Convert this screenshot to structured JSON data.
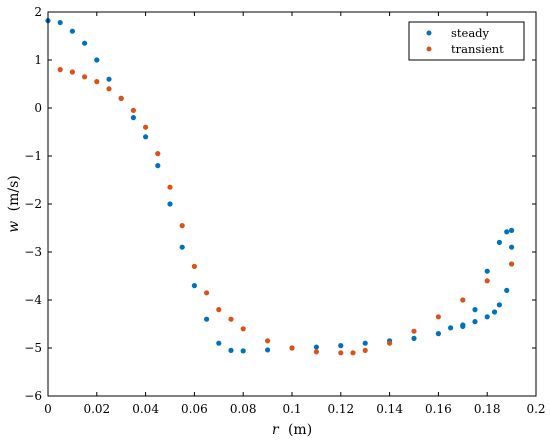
{
  "chart_data": {
    "type": "scatter",
    "title": "",
    "xlabel": "r (m)",
    "xlabel_var": "r",
    "xlabel_unit": "(m)",
    "ylabel": "w (m/s)",
    "ylabel_var": "w",
    "ylabel_unit": "(m/s)",
    "xlim": [
      0,
      0.2
    ],
    "ylim": [
      -6,
      2
    ],
    "xticks": [
      0,
      0.02,
      0.04,
      0.06,
      0.08,
      0.1,
      0.12,
      0.14,
      0.16,
      0.18,
      0.2
    ],
    "xtick_labels": [
      "0",
      "0.02",
      "0.04",
      "0.06",
      "0.08",
      "0.1",
      "0.12",
      "0.14",
      "0.16",
      "0.18",
      "0.2"
    ],
    "yticks": [
      2,
      1,
      0,
      -1,
      -2,
      -3,
      -4,
      -5,
      -6
    ],
    "ytick_labels": [
      "2",
      "1",
      "0",
      "−1",
      "−2",
      "−3",
      "−4",
      "−5",
      "−6"
    ],
    "grid": false,
    "legend": {
      "placement": "top-right",
      "entries": [
        "steady",
        "transient"
      ]
    },
    "series": [
      {
        "name": "steady",
        "color": "#0072BD",
        "x": [
          0.0,
          0.005,
          0.01,
          0.015,
          0.02,
          0.025,
          0.03,
          0.035,
          0.04,
          0.045,
          0.05,
          0.055,
          0.06,
          0.065,
          0.07,
          0.075,
          0.08,
          0.09,
          0.1,
          0.11,
          0.12,
          0.13,
          0.14,
          0.15,
          0.16,
          0.17,
          0.175,
          0.18,
          0.185,
          0.188,
          0.19,
          0.19,
          0.188,
          0.185,
          0.183,
          0.18,
          0.175,
          0.17,
          0.165
        ],
        "y": [
          1.82,
          1.78,
          1.6,
          1.35,
          1.0,
          0.6,
          0.2,
          -0.2,
          -0.6,
          -1.2,
          -2.0,
          -2.9,
          -3.7,
          -4.4,
          -4.9,
          -5.05,
          -5.06,
          -5.04,
          -5.0,
          -4.98,
          -4.95,
          -4.9,
          -4.85,
          -4.8,
          -4.7,
          -4.55,
          -4.2,
          -3.4,
          -2.8,
          -2.58,
          -2.55,
          -2.9,
          -3.8,
          -4.1,
          -4.25,
          -4.35,
          -4.45,
          -4.52,
          -4.58
        ]
      },
      {
        "name": "transient",
        "color": "#D95319",
        "x": [
          0.005,
          0.01,
          0.015,
          0.02,
          0.025,
          0.03,
          0.035,
          0.04,
          0.045,
          0.05,
          0.055,
          0.06,
          0.065,
          0.07,
          0.075,
          0.08,
          0.09,
          0.1,
          0.11,
          0.12,
          0.125,
          0.13,
          0.14,
          0.15,
          0.16,
          0.17,
          0.18,
          0.19
        ],
        "y": [
          0.8,
          0.75,
          0.65,
          0.55,
          0.4,
          0.2,
          -0.05,
          -0.4,
          -0.95,
          -1.65,
          -2.45,
          -3.3,
          -3.85,
          -4.2,
          -4.4,
          -4.6,
          -4.85,
          -5.0,
          -5.08,
          -5.1,
          -5.1,
          -5.05,
          -4.9,
          -4.65,
          -4.35,
          -4.0,
          -3.6,
          -3.25
        ]
      }
    ]
  }
}
